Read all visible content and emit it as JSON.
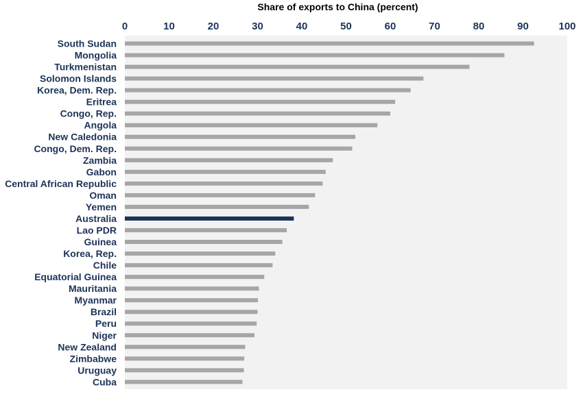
{
  "chart_data": {
    "type": "bar",
    "orientation": "horizontal",
    "title": "",
    "xlabel": "Share of exports to China (percent)",
    "ylabel": "",
    "xlim": [
      0,
      100
    ],
    "x_ticks": [
      0,
      10,
      20,
      30,
      40,
      50,
      60,
      70,
      80,
      90,
      100
    ],
    "x_axis_position": "top",
    "grid": false,
    "legend": "none",
    "highlight_category": "Australia",
    "colors": {
      "bar": "#a6a6a6",
      "highlight_bar": "#1c3358",
      "plot_background": "#f2f2f2",
      "label_text": "#1c3358"
    },
    "categories": [
      "South Sudan",
      "Mongolia",
      "Turkmenistan",
      "Solomon Islands",
      "Korea, Dem. Rep.",
      "Eritrea",
      "Congo, Rep.",
      "Angola",
      "New Caledonia",
      "Congo, Dem. Rep.",
      "Zambia",
      "Gabon",
      "Central African Republic",
      "Oman",
      "Yemen",
      "Australia",
      "Lao PDR",
      "Guinea",
      "Korea, Rep.",
      "Chile",
      "Equatorial Guinea",
      "Mauritania",
      "Myanmar",
      "Brazil",
      "Peru",
      "Niger",
      "New Zealand",
      "Zimbabwe",
      "Uruguay",
      "Cuba"
    ],
    "values": [
      92.5,
      85.8,
      77.9,
      67.5,
      64.6,
      61.1,
      60.0,
      57.1,
      52.1,
      51.4,
      47.0,
      45.4,
      44.7,
      43.0,
      41.6,
      38.2,
      36.6,
      35.6,
      34.0,
      33.4,
      31.5,
      30.3,
      30.1,
      30.0,
      29.8,
      29.3,
      27.2,
      27.0,
      26.9,
      26.6
    ]
  }
}
